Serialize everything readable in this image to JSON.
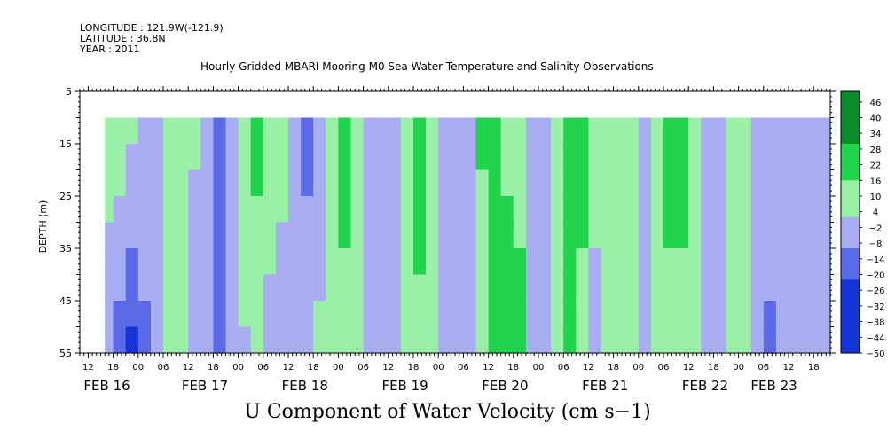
{
  "header": {
    "longitude": "LONGITUDE : 121.9W(-121.9)",
    "latitude": "LATITUDE : 36.8N",
    "year": "YEAR : 2011"
  },
  "colors": {
    "strong_pos": "#0b8a2a",
    "pos": "#22d44d",
    "weak_pos": "#9af0a6",
    "weak_neg": "#a9aef2",
    "neg": "#5b6ae6",
    "strong_neg": "#1434d6",
    "missing": "#ffffff"
  },
  "chart_data": {
    "type": "heatmap",
    "title": "Hourly Gridded MBARI Mooring M0 Sea Water Temperature and Salinity Observations",
    "xlabel": "U Component of Water Velocity (cm s−1)",
    "ylabel": "DEPTH (m)",
    "ylim": [
      5,
      55
    ],
    "y_ticks": [
      "5",
      "15",
      "25",
      "35",
      "45",
      "55"
    ],
    "y_tick_values": [
      5,
      15,
      25,
      35,
      45,
      55
    ],
    "x_range_hours": [
      0,
      180
    ],
    "data_start_hour": 6,
    "data_depth_range": [
      10,
      55
    ],
    "hour_ticks": [
      {
        "h": 2,
        "label": "12"
      },
      {
        "h": 8,
        "label": "18"
      },
      {
        "h": 14,
        "label": "00"
      },
      {
        "h": 20,
        "label": "06"
      },
      {
        "h": 26,
        "label": "12"
      },
      {
        "h": 32,
        "label": "18"
      },
      {
        "h": 38,
        "label": "00"
      },
      {
        "h": 44,
        "label": "06"
      },
      {
        "h": 50,
        "label": "12"
      },
      {
        "h": 56,
        "label": "18"
      },
      {
        "h": 62,
        "label": "00"
      },
      {
        "h": 68,
        "label": "06"
      },
      {
        "h": 74,
        "label": "12"
      },
      {
        "h": 80,
        "label": "18"
      },
      {
        "h": 86,
        "label": "00"
      },
      {
        "h": 92,
        "label": "06"
      },
      {
        "h": 98,
        "label": "12"
      },
      {
        "h": 104,
        "label": "18"
      },
      {
        "h": 110,
        "label": "00"
      },
      {
        "h": 116,
        "label": "06"
      },
      {
        "h": 122,
        "label": "12"
      },
      {
        "h": 128,
        "label": "18"
      },
      {
        "h": 134,
        "label": "00"
      },
      {
        "h": 140,
        "label": "06"
      },
      {
        "h": 146,
        "label": "12"
      },
      {
        "h": 152,
        "label": "18"
      },
      {
        "h": 158,
        "label": "00"
      },
      {
        "h": 164,
        "label": "06"
      },
      {
        "h": 170,
        "label": "12"
      },
      {
        "h": 176,
        "label": "18"
      }
    ],
    "day_labels": [
      {
        "h": 6.5,
        "label": "FEB 16"
      },
      {
        "h": 30,
        "label": "FEB 17"
      },
      {
        "h": 54,
        "label": "FEB 18"
      },
      {
        "h": 78,
        "label": "FEB 19"
      },
      {
        "h": 102,
        "label": "FEB 20"
      },
      {
        "h": 126,
        "label": "FEB 21"
      },
      {
        "h": 150,
        "label": "FEB 22"
      },
      {
        "h": 166.5,
        "label": "FEB 23"
      }
    ],
    "colorbar": {
      "min": -50,
      "max": 50,
      "tick_labels": [
        "46",
        "40",
        "34",
        "28",
        "22",
        "16",
        "10",
        "4",
        "−2",
        "−8",
        "−14",
        "−20",
        "−26",
        "−32",
        "−38",
        "−44",
        "−50"
      ]
    },
    "columns": [
      {
        "h": 6,
        "surface": 10,
        "bottom": -10
      },
      {
        "h": 8,
        "surface": 14,
        "bottom": -18
      },
      {
        "h": 11,
        "surface": 6,
        "bottom": -26
      },
      {
        "h": 14,
        "surface": -4,
        "bottom": -12
      },
      {
        "h": 17,
        "surface": -8,
        "bottom": -6
      },
      {
        "h": 20,
        "surface": 6,
        "bottom": 4
      },
      {
        "h": 23,
        "surface": 14,
        "bottom": 2
      },
      {
        "h": 26,
        "surface": 4,
        "bottom": -6
      },
      {
        "h": 29,
        "surface": -6,
        "bottom": -8
      },
      {
        "h": 32,
        "surface": -10,
        "bottom": -14
      },
      {
        "h": 35,
        "surface": -4,
        "bottom": -8
      },
      {
        "h": 38,
        "surface": 16,
        "bottom": 0
      },
      {
        "h": 41,
        "surface": 22,
        "bottom": 6
      },
      {
        "h": 44,
        "surface": 10,
        "bottom": -2
      },
      {
        "h": 47,
        "surface": 6,
        "bottom": -4
      },
      {
        "h": 50,
        "surface": -6,
        "bottom": -8
      },
      {
        "h": 53,
        "surface": -12,
        "bottom": -6
      },
      {
        "h": 56,
        "surface": -4,
        "bottom": 4
      },
      {
        "h": 59,
        "surface": 14,
        "bottom": 8
      },
      {
        "h": 62,
        "surface": 22,
        "bottom": 12
      },
      {
        "h": 65,
        "surface": 12,
        "bottom": 4
      },
      {
        "h": 68,
        "surface": 2,
        "bottom": -4
      },
      {
        "h": 71,
        "surface": -6,
        "bottom": -10
      },
      {
        "h": 74,
        "surface": -10,
        "bottom": -4
      },
      {
        "h": 77,
        "surface": 6,
        "bottom": 10
      },
      {
        "h": 80,
        "surface": 20,
        "bottom": 14
      },
      {
        "h": 83,
        "surface": 12,
        "bottom": 6
      },
      {
        "h": 86,
        "surface": -4,
        "bottom": -4
      },
      {
        "h": 89,
        "surface": -10,
        "bottom": -8
      },
      {
        "h": 92,
        "surface": 0,
        "bottom": 2
      },
      {
        "h": 95,
        "surface": 18,
        "bottom": 8
      },
      {
        "h": 98,
        "surface": 24,
        "bottom": 16
      },
      {
        "h": 101,
        "surface": 14,
        "bottom": 20
      },
      {
        "h": 104,
        "surface": 6,
        "bottom": 24
      },
      {
        "h": 107,
        "surface": -6,
        "bottom": -6
      },
      {
        "h": 110,
        "surface": -10,
        "bottom": -4
      },
      {
        "h": 113,
        "surface": 10,
        "bottom": 14
      },
      {
        "h": 116,
        "surface": 28,
        "bottom": 18
      },
      {
        "h": 119,
        "surface": 22,
        "bottom": 10
      },
      {
        "h": 122,
        "surface": 10,
        "bottom": -4
      },
      {
        "h": 125,
        "surface": 4,
        "bottom": 12
      },
      {
        "h": 128,
        "surface": 14,
        "bottom": 16
      },
      {
        "h": 131,
        "surface": 4,
        "bottom": 2
      },
      {
        "h": 134,
        "surface": -6,
        "bottom": -4
      },
      {
        "h": 137,
        "surface": 8,
        "bottom": 4
      },
      {
        "h": 140,
        "surface": 20,
        "bottom": 12
      },
      {
        "h": 143,
        "surface": 24,
        "bottom": 8
      },
      {
        "h": 146,
        "surface": 12,
        "bottom": 2
      },
      {
        "h": 149,
        "surface": 2,
        "bottom": -4
      },
      {
        "h": 152,
        "surface": -4,
        "bottom": -2
      },
      {
        "h": 155,
        "surface": 12,
        "bottom": 4
      },
      {
        "h": 158,
        "surface": 6,
        "bottom": 2
      },
      {
        "h": 161,
        "surface": -2,
        "bottom": -8
      },
      {
        "h": 164,
        "surface": -4,
        "bottom": -12
      },
      {
        "h": 167,
        "surface": 2,
        "bottom": -10
      }
    ]
  }
}
